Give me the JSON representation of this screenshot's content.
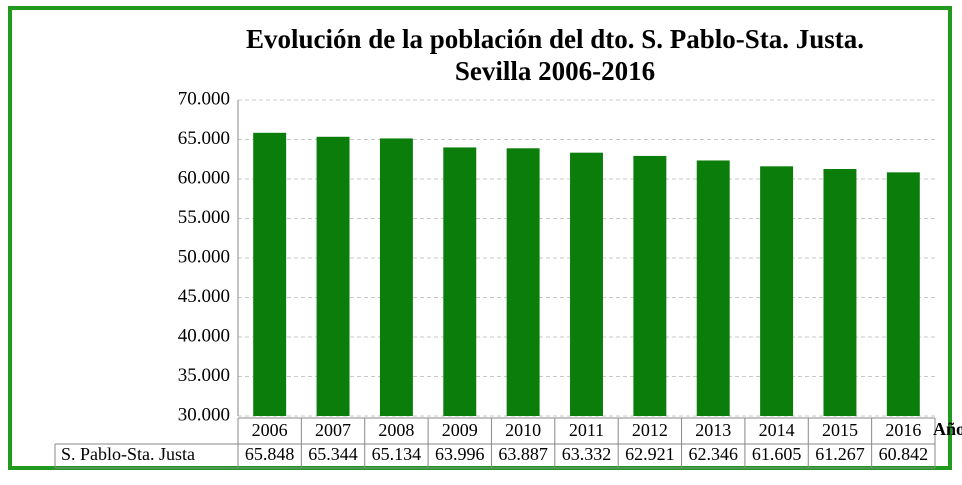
{
  "chart_data": {
    "type": "bar",
    "title": "Evolución de la población del dto. S. Pablo-Sta. Justa.",
    "subtitle": "Sevilla 2006-2016",
    "x_label": "Año",
    "categories": [
      "2006",
      "2007",
      "2008",
      "2009",
      "2010",
      "2011",
      "2012",
      "2013",
      "2014",
      "2015",
      "2016"
    ],
    "series": [
      {
        "name": "S. Pablo-Sta. Justa",
        "color": "#0a7d0a",
        "values": [
          65848,
          65344,
          65134,
          63996,
          63887,
          63332,
          62921,
          62346,
          61605,
          61267,
          60842
        ],
        "value_labels": [
          "65.848",
          "65.344",
          "65.134",
          "63.996",
          "63.887",
          "63.332",
          "62.921",
          "62.346",
          "61.605",
          "61.267",
          "60.842"
        ]
      }
    ],
    "ylim": [
      30000,
      70000
    ],
    "yticks": [
      {
        "value": 30000,
        "label": "30.000"
      },
      {
        "value": 35000,
        "label": "35.000"
      },
      {
        "value": 40000,
        "label": "40.000"
      },
      {
        "value": 45000,
        "label": "45.000"
      },
      {
        "value": 50000,
        "label": "50.000"
      },
      {
        "value": 55000,
        "label": "55.000"
      },
      {
        "value": 60000,
        "label": "60.000"
      },
      {
        "value": 65000,
        "label": "65.000"
      },
      {
        "value": 70000,
        "label": "70.000"
      }
    ],
    "grid": true
  }
}
